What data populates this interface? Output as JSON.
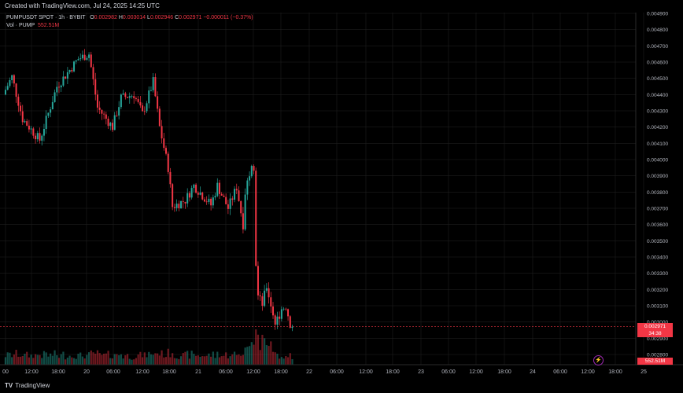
{
  "header": {
    "created": "Created with TradingView.com, Jul 24, 2025 14:25 UTC"
  },
  "legend": {
    "symbol": "PUMPUSDT SPOT · 1h · BYBIT",
    "o_label": "O",
    "o": "0.002982",
    "h_label": "H",
    "h": "0.003014",
    "l_label": "L",
    "l": "0.002946",
    "c_label": "C",
    "c": "0.002971",
    "change": "−0.000011 (−0.37%)",
    "vol_label": "Vol · PUMP",
    "vol": "552.51M"
  },
  "price_tag": {
    "price": "0.002971",
    "countdown": "34:38"
  },
  "volume_tag": "552.51M",
  "footer": {
    "logo": "TV",
    "brand": "TradingView"
  },
  "colors": {
    "up": "#26a69a",
    "down": "#f23645",
    "background": "#000000",
    "grid": "#1e1e1e"
  },
  "chart_data": {
    "type": "candlestick",
    "interval": "1h",
    "y_axis": {
      "ylim": [
        0.0028,
        0.0049
      ],
      "ticks": [
        "0.004900",
        "0.004800",
        "0.004700",
        "0.004600",
        "0.004500",
        "0.004400",
        "0.004300",
        "0.004200",
        "0.004100",
        "0.004000",
        "0.003900",
        "0.003800",
        "0.003700",
        "0.003600",
        "0.003500",
        "0.003400",
        "0.003300",
        "0.003200",
        "0.003100",
        "0.003000",
        "0.002900",
        "0.002800"
      ]
    },
    "x_axis": {
      "ticks": [
        "00",
        "12:00",
        "18:00",
        "20",
        "06:00",
        "12:00",
        "18:00",
        "21",
        "06:00",
        "12:00",
        "18:00",
        "22",
        "06:00",
        "12:00",
        "18:00",
        "23",
        "06:00",
        "12:00",
        "18:00",
        "24",
        "06:00",
        "12:00",
        "18:00",
        "25"
      ]
    },
    "last_price": 0.002971,
    "key_points": [
      {
        "time": "19 00:00",
        "close": 0.00443
      },
      {
        "time": "19 03:00",
        "close": 0.00451
      },
      {
        "time": "19 08:00",
        "close": 0.00425
      },
      {
        "time": "19 16:00",
        "close": 0.00412
      },
      {
        "time": "20 00:00",
        "close": 0.00445
      },
      {
        "time": "20 10:00",
        "close": 0.00462
      },
      {
        "time": "20 15:00",
        "close": 0.00465
      },
      {
        "time": "20 19:00",
        "close": 0.00432
      },
      {
        "time": "21 02:00",
        "close": 0.0042
      },
      {
        "time": "21 06:00",
        "close": 0.00438
      },
      {
        "time": "21 12:00",
        "close": 0.0044
      },
      {
        "time": "21 16:00",
        "close": 0.00428
      },
      {
        "time": "21 21:00",
        "close": 0.00448
      },
      {
        "time": "22 00:00",
        "close": 0.0042
      },
      {
        "time": "22 04:00",
        "close": 0.00395
      },
      {
        "time": "22 06:00",
        "close": 0.00371
      },
      {
        "time": "22 12:00",
        "close": 0.00375
      },
      {
        "time": "22 16:00",
        "close": 0.00384
      },
      {
        "time": "23 00:00",
        "close": 0.00372
      },
      {
        "time": "23 03:00",
        "close": 0.00384
      },
      {
        "time": "23 08:00",
        "close": 0.0037
      },
      {
        "time": "23 12:00",
        "close": 0.00383
      },
      {
        "time": "23 15:00",
        "close": 0.0036
      },
      {
        "time": "23 16:00",
        "close": 0.0038
      },
      {
        "time": "23 19:00",
        "close": 0.00399
      },
      {
        "time": "23 20:00",
        "close": 0.00396
      },
      {
        "time": "23 21:00",
        "close": 0.00336
      },
      {
        "time": "23 22:00",
        "close": 0.00316
      },
      {
        "time": "24 00:00",
        "close": 0.00311
      },
      {
        "time": "24 02:00",
        "close": 0.00322
      },
      {
        "time": "24 05:00",
        "close": 0.00305
      },
      {
        "time": "24 06:00",
        "close": 0.00298
      },
      {
        "time": "24 09:00",
        "close": 0.00308
      },
      {
        "time": "24 11:00",
        "close": 0.0031
      },
      {
        "time": "24 13:00",
        "close": 0.00299
      },
      {
        "time": "24 14:00",
        "close": 0.002971
      }
    ],
    "volume_unit": "PUMP",
    "last_volume": "552.51M"
  }
}
